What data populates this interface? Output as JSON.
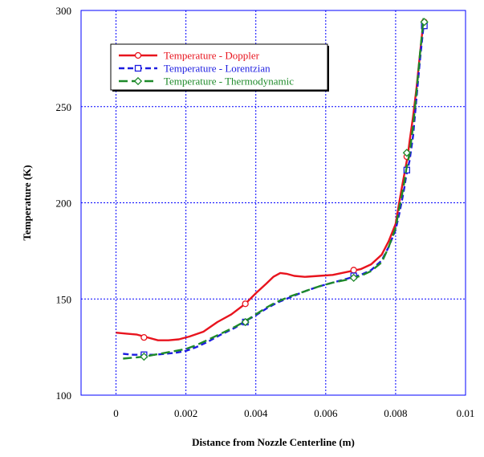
{
  "chart_data": {
    "type": "line",
    "title": "",
    "xlabel": "Distance from Nozzle Centerline (m)",
    "ylabel": "Temperature (K)",
    "xlim": [
      -0.001,
      0.01
    ],
    "ylim": [
      100,
      300
    ],
    "xticks": [
      0,
      0.002,
      0.004,
      0.006,
      0.008,
      0.01
    ],
    "xtick_labels": [
      "0",
      "0.002",
      "0.004",
      "0.006",
      "0.008",
      "0.01"
    ],
    "yticks": [
      100,
      150,
      200,
      250,
      300
    ],
    "ytick_labels": [
      "100",
      "150",
      "200",
      "250",
      "300"
    ],
    "grid": true,
    "legend_position": "top-left",
    "series": [
      {
        "name": "Temperature - Doppler",
        "color": "#e8141e",
        "marker": "circle",
        "dash": "solid",
        "x": [
          0,
          0.0003,
          0.0006,
          0.0009,
          0.0012,
          0.0015,
          0.0018,
          0.0021,
          0.0025,
          0.0029,
          0.0033,
          0.0037,
          0.004,
          0.0043,
          0.0045,
          0.0047,
          0.0049,
          0.0051,
          0.0054,
          0.0058,
          0.0062,
          0.0066,
          0.007,
          0.0073,
          0.0076,
          0.0078,
          0.008,
          0.0081,
          0.0082,
          0.0083,
          0.00835,
          0.0084,
          0.0085,
          0.0086,
          0.0087,
          0.0088
        ],
        "y": [
          132.5,
          132,
          131.5,
          130,
          128.5,
          128.5,
          129,
          130.5,
          133,
          138,
          142,
          147.5,
          153,
          158,
          161.5,
          163.5,
          163,
          162,
          161.5,
          162,
          162.5,
          164,
          165.5,
          168,
          173,
          180,
          189,
          200,
          210,
          220,
          225,
          232,
          245,
          260,
          278,
          295
        ],
        "marker_x": [
          0.0008,
          0.0037,
          0.0068,
          0.00832,
          0.00882
        ],
        "marker_y": [
          130,
          147.5,
          165,
          224,
          294
        ]
      },
      {
        "name": "Temperature - Lorentzian",
        "color": "#1c1ce0",
        "marker": "square",
        "dash": "dash",
        "x": [
          0.0002,
          0.0005,
          0.0008,
          0.0011,
          0.0014,
          0.0017,
          0.002,
          0.0023,
          0.0026,
          0.003,
          0.0034,
          0.0037,
          0.004,
          0.0043,
          0.0046,
          0.005,
          0.0054,
          0.0058,
          0.0062,
          0.0066,
          0.007,
          0.0073,
          0.0076,
          0.0078,
          0.008,
          0.0081,
          0.0082,
          0.00825,
          0.0083,
          0.0084,
          0.0085,
          0.0086,
          0.0087,
          0.0088
        ],
        "y": [
          121.5,
          121,
          121,
          121,
          121.5,
          122,
          123,
          125,
          127.5,
          131.5,
          135,
          138.5,
          141.5,
          145,
          148,
          151,
          154,
          156.5,
          158.5,
          160.5,
          162.5,
          165,
          170,
          177,
          186,
          194,
          203,
          208,
          214,
          222,
          235,
          255,
          275,
          292
        ],
        "marker_x": [
          0.0008,
          0.0037,
          0.0068,
          0.00832,
          0.00882
        ],
        "marker_y": [
          121,
          138,
          162,
          217,
          292
        ]
      },
      {
        "name": "Temperature - Thermodynamic",
        "color": "#1e8a2a",
        "marker": "diamond",
        "dash": "longdash",
        "x": [
          0.0002,
          0.0005,
          0.0008,
          0.0011,
          0.0014,
          0.0017,
          0.002,
          0.0023,
          0.0026,
          0.003,
          0.0034,
          0.0037,
          0.004,
          0.0043,
          0.0046,
          0.005,
          0.0054,
          0.0058,
          0.0062,
          0.0066,
          0.007,
          0.0073,
          0.0076,
          0.0078,
          0.008,
          0.0081,
          0.0082,
          0.00825,
          0.0083,
          0.0084,
          0.0085,
          0.0086,
          0.0087,
          0.0088
        ],
        "y": [
          119,
          119.5,
          120,
          121,
          122,
          123,
          124,
          126,
          128.5,
          132,
          135.5,
          138.5,
          142,
          145.5,
          148.5,
          151.5,
          154,
          156.5,
          158.5,
          160,
          162,
          164.5,
          169,
          177,
          187,
          197,
          206,
          211,
          217,
          226,
          240,
          258,
          278,
          296
        ],
        "marker_x": [
          0.0008,
          0.0037,
          0.0068,
          0.00832,
          0.00882
        ],
        "marker_y": [
          120,
          138,
          161,
          226,
          294
        ]
      }
    ]
  }
}
